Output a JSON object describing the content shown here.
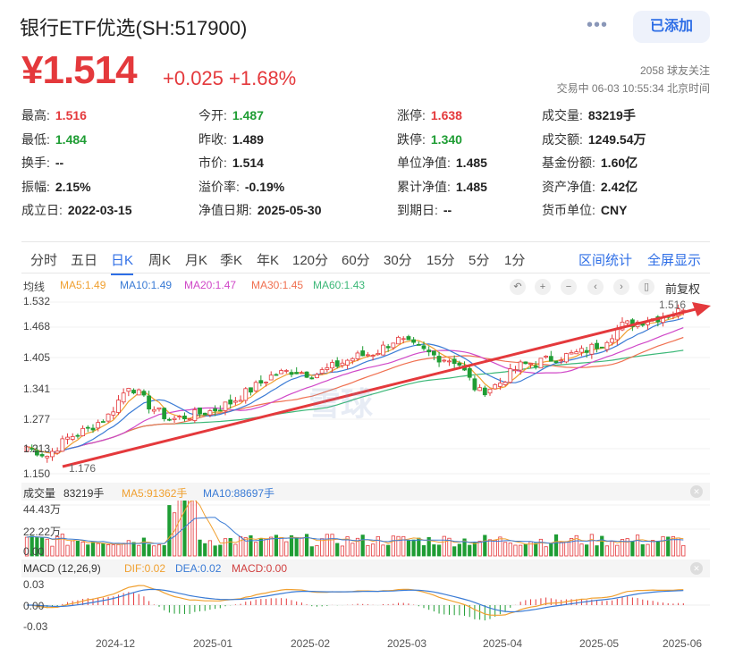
{
  "header": {
    "title": "银行ETF优选(SH:517900)",
    "price": "¥1.514",
    "change": "+0.025 +1.68%",
    "followers": "2058 球友关注",
    "trade_status": "交易中 06-03 10:55:34 北京时间",
    "added_label": "已添加",
    "more_icon": "more-dots-icon"
  },
  "stats": {
    "r1": [
      {
        "l": "最高:",
        "v": "1.516"
      },
      {
        "l": "今开:",
        "v": "1.487"
      },
      {
        "l": "涨停:",
        "v": "1.638"
      },
      {
        "l": "成交量:",
        "v": "83219手"
      }
    ],
    "r2": [
      {
        "l": "最低:",
        "v": "1.484"
      },
      {
        "l": "昨收:",
        "v": "1.489"
      },
      {
        "l": "跌停:",
        "v": "1.340"
      },
      {
        "l": "成交额:",
        "v": "1249.54万"
      }
    ],
    "r3": [
      {
        "l": "换手:",
        "v": "--"
      },
      {
        "l": "市价:",
        "v": "1.514"
      },
      {
        "l": "单位净值:",
        "v": "1.485"
      },
      {
        "l": "基金份额:",
        "v": "1.60亿"
      }
    ],
    "r4": [
      {
        "l": "振幅:",
        "v": "2.15%"
      },
      {
        "l": "溢价率:",
        "v": "-0.19%"
      },
      {
        "l": "累计净值:",
        "v": "1.485"
      },
      {
        "l": "资产净值:",
        "v": "2.42亿"
      }
    ],
    "r5": [
      {
        "l": "成立日:",
        "v": "2022-03-15"
      },
      {
        "l": "净值日期:",
        "v": "2025-05-30"
      },
      {
        "l": "到期日:",
        "v": "--"
      },
      {
        "l": "货币单位:",
        "v": "CNY"
      }
    ]
  },
  "tabs": [
    "分时",
    "五日",
    "日K",
    "周K",
    "月K",
    "季K",
    "年K",
    "120分",
    "60分",
    "30分",
    "15分",
    "5分",
    "1分"
  ],
  "active_tab": "日K",
  "tab_actions": {
    "interval": "区间统计",
    "fullscreen": "全屏显示"
  },
  "ma_legend": {
    "label": "均线",
    "ma5": "MA5:1.49",
    "ma10": "MA10:1.49",
    "ma20": "MA20:1.47",
    "ma30": "MA30:1.45",
    "ma60": "MA60:1.43"
  },
  "toolbar": {
    "adjust_label": "前复权",
    "icons": [
      "undo-icon",
      "zoom-in-icon",
      "zoom-out-icon",
      "pan-left-icon",
      "pan-right-icon",
      "candle-icon"
    ]
  },
  "price_axis": {
    "ticks": [
      "1.532",
      "1.468",
      "1.405",
      "1.341",
      "1.277",
      "1.213",
      "1.150"
    ],
    "high_mark": "1.516",
    "low_mark": "1.176"
  },
  "volume": {
    "label": "成交量",
    "value": "83219手",
    "ma5": "MA5:91362手",
    "ma10": "MA10:88697手",
    "ticks": [
      "44.43万",
      "22.22万",
      "0.00"
    ]
  },
  "macd": {
    "label": "MACD (12,26,9)",
    "dif": "DIF:0.02",
    "dea": "DEA:0.02",
    "macd": "MACD:0.00",
    "ticks": [
      "0.03",
      "0.00",
      "-0.03"
    ]
  },
  "x_labels": [
    "2024-12",
    "2025-01",
    "2025-02",
    "2025-03",
    "2025-04",
    "2025-05",
    "2025-06"
  ],
  "watermark": "雪球",
  "colors": {
    "up": "#e4393c",
    "down": "#1f9d34",
    "accent": "#2e6ee6",
    "ma5": "#f0a030",
    "ma10": "#3a7bd5",
    "ma20": "#d048c8",
    "ma30": "#f07050",
    "ma60": "#3cb878"
  },
  "chart_data": {
    "type": "candlestick",
    "x_range": [
      "2024-11",
      "2025-06-03"
    ],
    "ylim": [
      1.15,
      1.532
    ],
    "close_path_approx": [
      1.21,
      1.19,
      1.23,
      1.25,
      1.28,
      1.35,
      1.3,
      1.27,
      1.28,
      1.29,
      1.31,
      1.34,
      1.37,
      1.38,
      1.37,
      1.39,
      1.41,
      1.42,
      1.45,
      1.43,
      1.41,
      1.4,
      1.33,
      1.35,
      1.39,
      1.4,
      1.41,
      1.42,
      1.44,
      1.48,
      1.49,
      1.5,
      1.514
    ]
  }
}
